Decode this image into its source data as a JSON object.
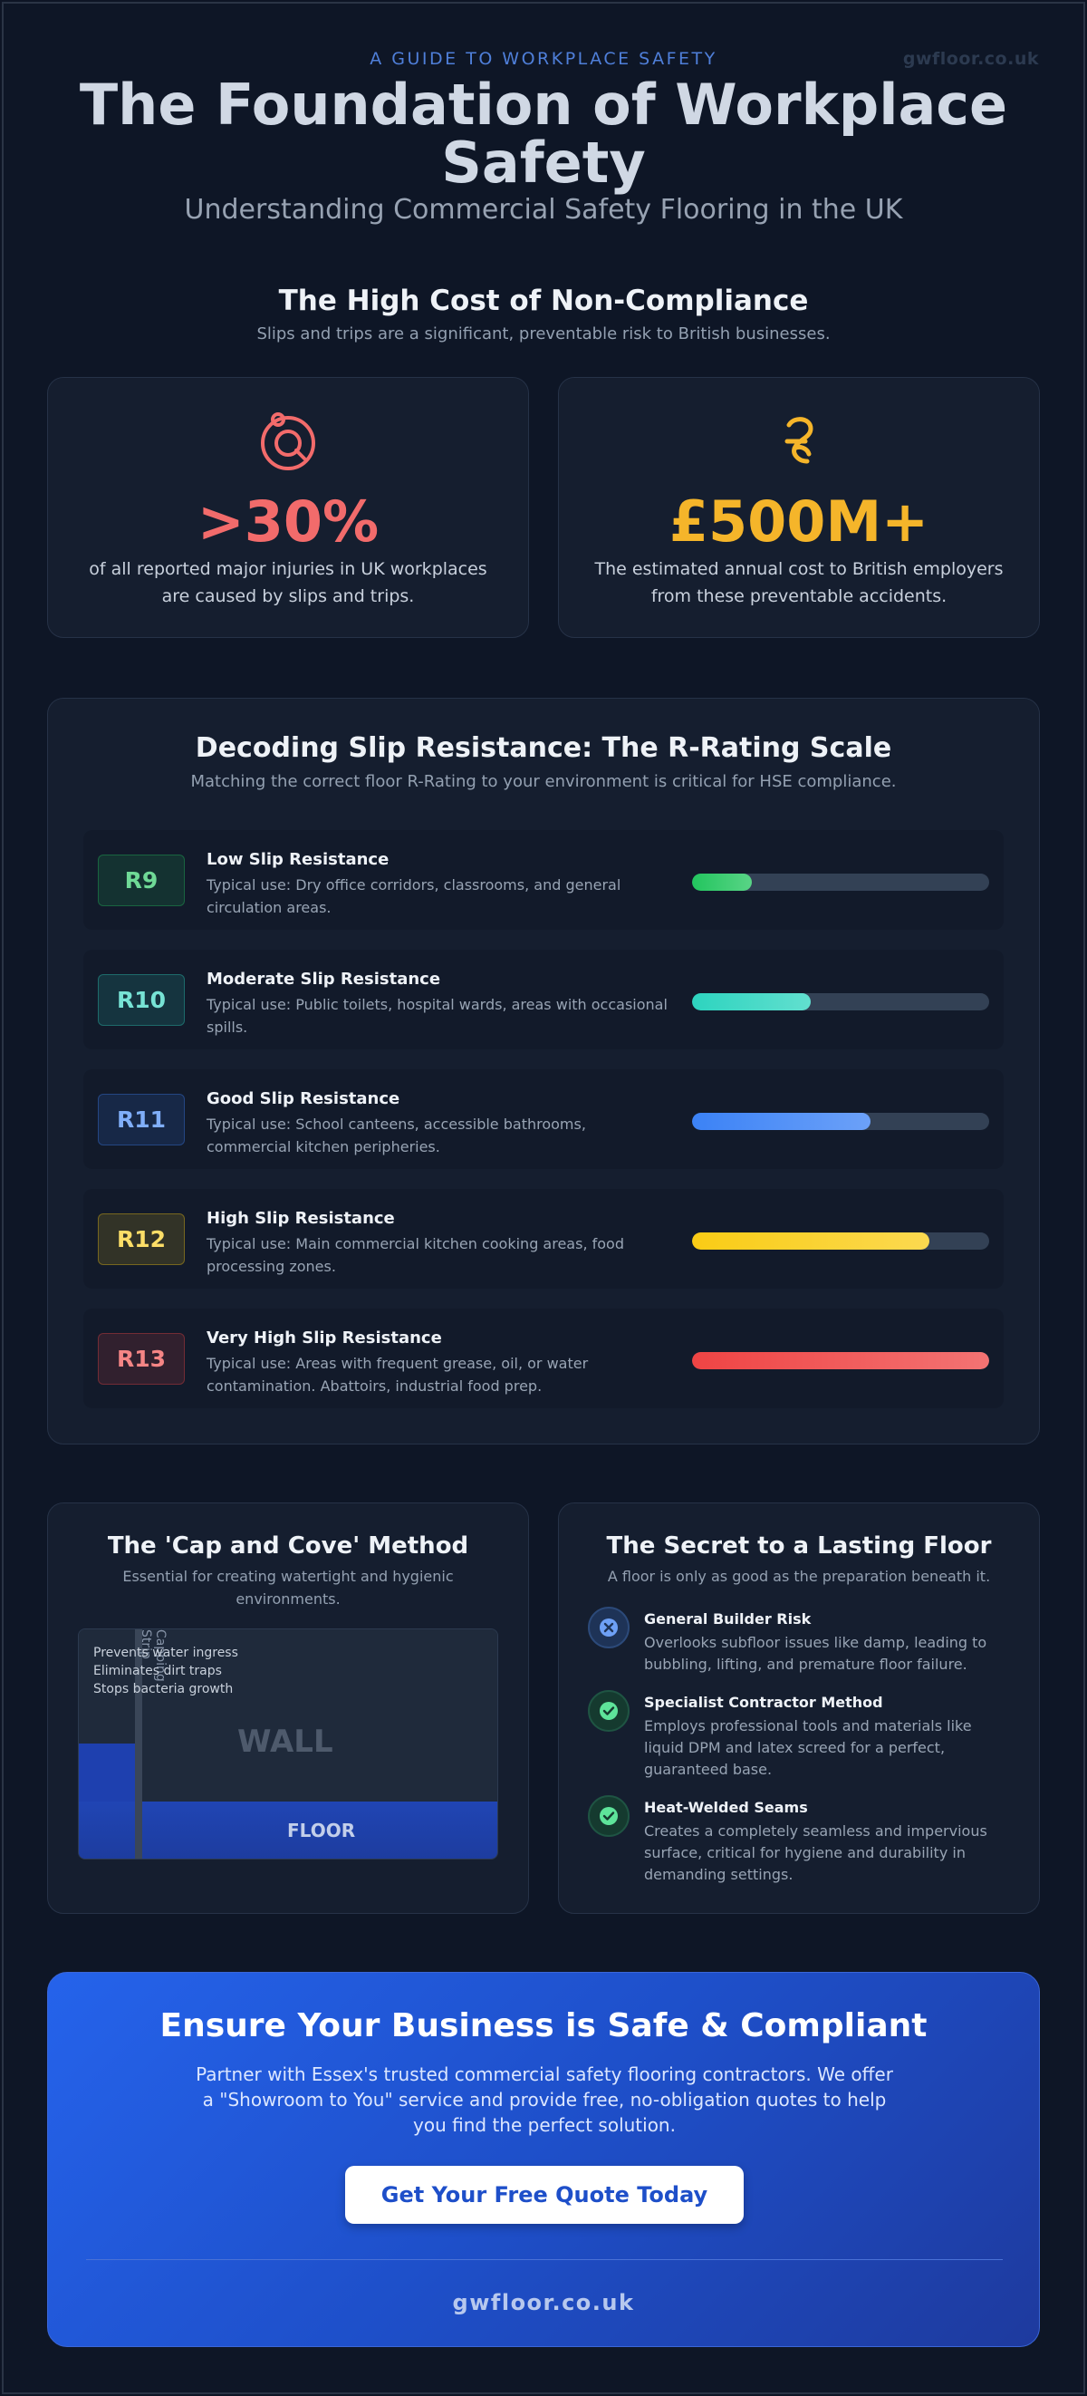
{
  "header": {
    "kicker": "A GUIDE TO WORKPLACE SAFETY",
    "brand": "gwfloor.co.uk",
    "title": "The Foundation of Workplace Safety",
    "subtitle": "Understanding Commercial Safety Flooring in the UK"
  },
  "cost": {
    "title": "The High Cost of Non-Compliance",
    "subtitle": "Slips and trips are a significant, preventable risk to British businesses.",
    "stats": [
      {
        "icon": "target-injury-icon",
        "value": ">30%",
        "description": "of all reported major injuries in UK workplaces are caused by slips and trips.",
        "color": "#f26b6b"
      },
      {
        "icon": "pound-coin-icon",
        "value": "£500M+",
        "description": "The estimated annual cost to British employers from these preventable accidents.",
        "color": "#f5b52a"
      }
    ]
  },
  "rating": {
    "title": "Decoding Slip Resistance: The R-Rating Scale",
    "subtitle": "Matching the correct floor R-Rating to your environment is critical for HSE compliance.",
    "rows": [
      {
        "badge": "R9",
        "name": "Low Slip Resistance",
        "description": "Typical use: Dry office corridors, classrooms, and general circulation areas.",
        "level": 0.2,
        "color": "#22c55e"
      },
      {
        "badge": "R10",
        "name": "Moderate Slip Resistance",
        "description": "Typical use: Public toilets, hospital wards, areas with occasional spills.",
        "level": 0.4,
        "color": "#2dd4bf"
      },
      {
        "badge": "R11",
        "name": "Good Slip Resistance",
        "description": "Typical use: School canteens, accessible bathrooms, commercial kitchen peripheries.",
        "level": 0.6,
        "color": "#3b82f6"
      },
      {
        "badge": "R12",
        "name": "High Slip Resistance",
        "description": "Typical use: Main commercial kitchen cooking areas, food processing zones.",
        "level": 0.8,
        "color": "#facc15"
      },
      {
        "badge": "R13",
        "name": "Very High Slip Resistance",
        "description": "Typical use: Areas with frequent grease, oil, or water contamination. Abattoirs, industrial food prep.",
        "level": 1.0,
        "color": "#ef4444"
      }
    ]
  },
  "cove": {
    "title": "The 'Cap and Cove' Method",
    "subtitle": "Essential for creating watertight and hygienic environments.",
    "benefits": [
      "Prevents water ingress",
      "Eliminates dirt traps",
      "Stops bacteria growth"
    ],
    "cap_label": "Capping Strip",
    "wall_label": "WALL",
    "floor_label": "FLOOR"
  },
  "secret": {
    "title": "The Secret to a Lasting Floor",
    "subtitle": "A floor is only as good as the preparation beneath it.",
    "items": [
      {
        "icon": "cross-icon",
        "title": "General Builder Risk",
        "description": "Overlooks subfloor issues like damp, leading to bubbling, lifting, and premature floor failure."
      },
      {
        "icon": "check-icon",
        "title": "Specialist Contractor Method",
        "description": "Employs professional tools and materials like liquid DPM and latex screed for a perfect, guaranteed base."
      },
      {
        "icon": "check-icon",
        "title": "Heat-Welded Seams",
        "description": "Creates a completely seamless and impervious surface, critical for hygiene and durability in demanding settings."
      }
    ]
  },
  "cta": {
    "title": "Ensure Your Business is Safe & Compliant",
    "text": "Partner with Essex's trusted commercial safety flooring contractors. We offer a \"Showroom to You\" service and provide free, no-obligation quotes to help you find the perfect solution.",
    "button": "Get Your Free Quote Today",
    "brand": "gwfloor.co.uk"
  }
}
